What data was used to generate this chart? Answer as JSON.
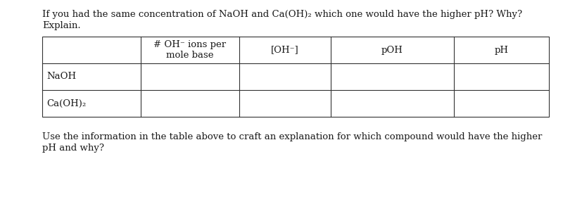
{
  "title_line1": "If you had the same concentration of NaOH and Ca(OH)₂ which one would have the higher pH? Why?",
  "title_line2": "Explain.",
  "col_headers": [
    "# OH⁻ ions per\nmole base",
    "[OH⁻]",
    "pOH",
    "pH"
  ],
  "row_labels": [
    "NaOH",
    "Ca(OH)₂"
  ],
  "footer_line1": "Use the information in the table above to craft an explanation for which compound would have the higher",
  "footer_line2": "pH and why?",
  "bg_color": "#ffffff",
  "text_color": "#1a1a1a",
  "font_size": 9.5,
  "font_family": "DejaVu Serif"
}
